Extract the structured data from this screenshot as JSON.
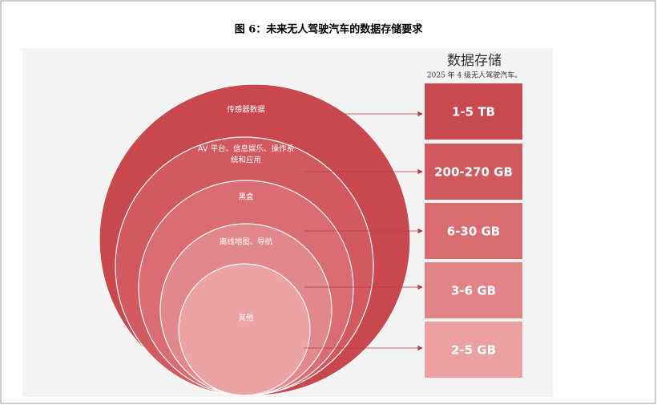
{
  "title": "图 6：未来无人驾驶汽车的数据存储要求",
  "panel": {
    "title": "数据存储",
    "subtitle": "2025 年 4 级无人驾驶汽车。"
  },
  "layers": [
    {
      "label_lines": [
        "传感器数据"
      ],
      "storage": "1-5 TB"
    },
    {
      "label_lines": [
        "AV 平台、信息娱乐、操作系",
        "统和应用"
      ],
      "storage": "200-270 GB"
    },
    {
      "label_lines": [
        "黑盒"
      ],
      "storage": "6-30 GB"
    },
    {
      "label_lines": [
        "离线地图、导航"
      ],
      "storage": "3-6 GB"
    },
    {
      "label_lines": [
        "其他"
      ],
      "storage": "2-5 GB"
    }
  ]
}
